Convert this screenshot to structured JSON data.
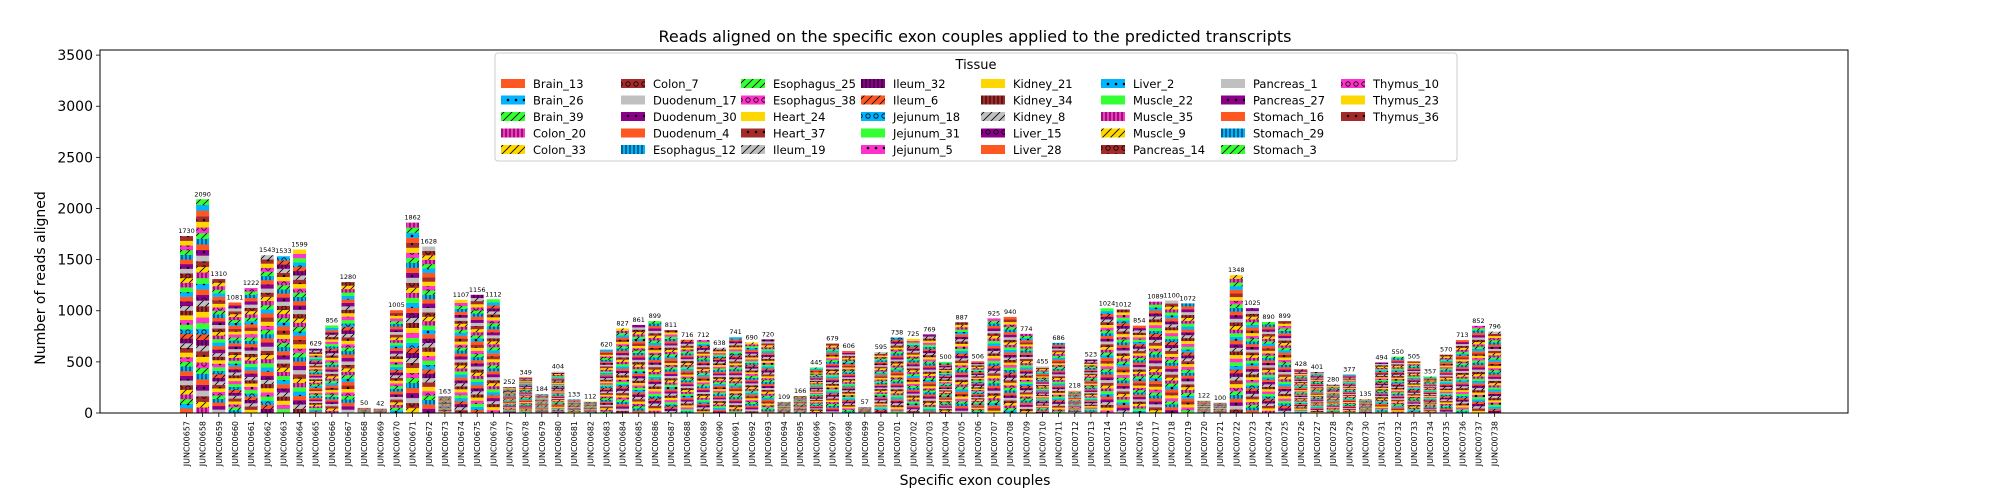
{
  "chart_data": {
    "type": "bar",
    "stacked": true,
    "title": "Reads aligned on the specific exon couples applied to the predicted transcripts",
    "xlabel": "Specific exon couples",
    "ylabel": "Number of reads aligned",
    "ylim": [
      0,
      3550
    ],
    "yticks": [
      0,
      500,
      1000,
      1500,
      2000,
      2500,
      3000,
      3500
    ],
    "grid": false,
    "legend": {
      "title": "Tissue",
      "placement": "top-center",
      "columns": 8,
      "entries": [
        "Brain_13",
        "Brain_26",
        "Brain_39",
        "Colon_20",
        "Colon_33",
        "Colon_7",
        "Duodenum_17",
        "Duodenum_30",
        "Duodenum_4",
        "Esophagus_12",
        "Esophagus_25",
        "Esophagus_38",
        "Heart_24",
        "Heart_37",
        "Ileum_19",
        "Ileum_32",
        "Ileum_6",
        "Jejunum_18",
        "Jejunum_31",
        "Jejunum_5",
        "Kidney_21",
        "Kidney_34",
        "Kidney_8",
        "Liver_15",
        "Liver_28",
        "Liver_2",
        "Muscle_22",
        "Muscle_35",
        "Muscle_9",
        "Pancreas_14",
        "Pancreas_1",
        "Pancreas_27",
        "Stomach_16",
        "Stomach_29",
        "Stomach_3",
        "Thymus_10",
        "Thymus_23",
        "Thymus_36"
      ],
      "colors": [
        "#ff5722",
        "#00b4ff",
        "#33ff33",
        "#ff33cc",
        "#ffd700",
        "#a52a2a",
        "#c0c0c0",
        "#8b008b",
        "#ff5722",
        "#00b4ff",
        "#33ff33",
        "#ff33cc",
        "#ffd700",
        "#a52a2a",
        "#c0c0c0",
        "#8b008b",
        "#ff5722",
        "#00b4ff",
        "#33ff33",
        "#ff33cc",
        "#ffd700",
        "#a52a2a",
        "#c0c0c0",
        "#8b008b",
        "#ff5722",
        "#00b4ff",
        "#33ff33",
        "#ff33cc",
        "#ffd700",
        "#a52a2a",
        "#c0c0c0",
        "#8b008b",
        "#ff5722",
        "#00b4ff",
        "#33ff33",
        "#ff33cc",
        "#ffd700",
        "#a52a2a"
      ],
      "hatches": [
        "",
        "dots",
        "slash",
        "bars",
        "slash",
        "ring",
        "",
        "dots",
        "",
        "bars",
        "slash",
        "ring",
        "",
        "dots",
        "slash",
        "bars",
        "slash",
        "ring",
        "",
        "dots",
        "",
        "bars",
        "slash",
        "ring",
        "",
        "dots",
        "",
        "bars",
        "slash",
        "ring",
        "",
        "dots",
        "",
        "bars",
        "slash",
        "ring",
        "",
        "dots"
      ]
    },
    "categories": [
      "JUNC00657",
      "JUNC00658",
      "JUNC00659",
      "JUNC00660",
      "JUNC00661",
      "JUNC00662",
      "JUNC00663",
      "JUNC00664",
      "JUNC00665",
      "JUNC00666",
      "JUNC00667",
      "JUNC00668",
      "JUNC00669",
      "JUNC00670",
      "JUNC00671",
      "JUNC00672",
      "JUNC00673",
      "JUNC00674",
      "JUNC00675",
      "JUNC00676",
      "JUNC00677",
      "JUNC00678",
      "JUNC00679",
      "JUNC00680",
      "JUNC00681",
      "JUNC00682",
      "JUNC00683",
      "JUNC00684",
      "JUNC00685",
      "JUNC00686",
      "JUNC00687",
      "JUNC00688",
      "JUNC00689",
      "JUNC00690",
      "JUNC00691",
      "JUNC00692",
      "JUNC00693",
      "JUNC00694",
      "JUNC00695",
      "JUNC00696",
      "JUNC00697",
      "JUNC00698",
      "JUNC00699",
      "JUNC00700",
      "JUNC00701",
      "JUNC00702",
      "JUNC00703",
      "JUNC00704",
      "JUNC00705",
      "JUNC00706",
      "JUNC00707",
      "JUNC00708",
      "JUNC00709",
      "JUNC00710",
      "JUNC00711",
      "JUNC00712",
      "JUNC00713",
      "JUNC00714",
      "JUNC00715",
      "JUNC00716",
      "JUNC00717",
      "JUNC00718",
      "JUNC00719",
      "JUNC00720",
      "JUNC00721",
      "JUNC00722",
      "JUNC00723",
      "JUNC00724",
      "JUNC00725",
      "JUNC00726",
      "JUNC00727",
      "JUNC00728",
      "JUNC00729",
      "JUNC00730",
      "JUNC00731",
      "JUNC00732",
      "JUNC00733",
      "JUNC00734",
      "JUNC00735",
      "JUNC00736",
      "JUNC00737",
      "JUNC00738"
    ],
    "totals": [
      1730,
      2090,
      1310,
      1081,
      1222,
      1543,
      1533,
      1599,
      629,
      856,
      1280,
      50,
      42,
      1005,
      1862,
      1628,
      163,
      1107,
      1156,
      1112,
      252,
      349,
      184,
      404,
      133,
      112,
      620,
      827,
      861,
      899,
      811,
      716,
      712,
      638,
      741,
      690,
      720,
      109,
      166,
      445,
      679,
      606,
      57,
      595,
      738,
      725,
      769,
      500,
      887,
      506,
      925,
      940,
      774,
      455,
      686,
      218,
      523,
      1024,
      1012,
      854,
      1089,
      1100,
      1072,
      122,
      100,
      1348,
      1025,
      890,
      899,
      428,
      401,
      280,
      377,
      135,
      494,
      550,
      505,
      357,
      570,
      713,
      852,
      796
    ]
  }
}
